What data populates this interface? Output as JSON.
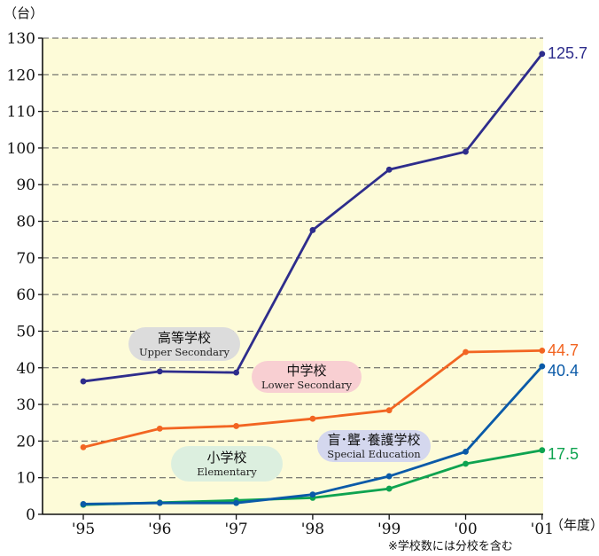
{
  "chart_data": {
    "type": "line",
    "y_unit_label": "（台）",
    "x_unit_label": "（年度）",
    "x": [
      "'95",
      "'96",
      "'97",
      "'98",
      "'99",
      "'00",
      "'01"
    ],
    "ylim": [
      0,
      130
    ],
    "yticks": [
      0,
      10,
      20,
      30,
      40,
      50,
      60,
      70,
      80,
      90,
      100,
      110,
      120,
      130
    ],
    "grid": true,
    "series": [
      {
        "name_jp": "高等学校",
        "name_en": "Upper Secondary",
        "color": "#2e2d8c",
        "values": [
          36.3,
          39.0,
          38.7,
          77.6,
          94.1,
          99.0,
          125.7
        ],
        "end_label": "125.7"
      },
      {
        "name_jp": "中学校",
        "name_en": "Lower Secondary",
        "color": "#f26522",
        "values": [
          18.3,
          23.4,
          24.1,
          26.1,
          28.4,
          44.3,
          44.7
        ],
        "end_label": "44.7"
      },
      {
        "name_jp": "盲･聾･養護学校",
        "name_en": "Special Education",
        "color": "#0a5aa8",
        "values": [
          2.8,
          3.1,
          3.1,
          5.4,
          10.4,
          17.1,
          40.4
        ],
        "end_label": "40.4"
      },
      {
        "name_jp": "小学校",
        "name_en": "Elementary",
        "color": "#0ea350",
        "values": [
          2.6,
          3.2,
          3.8,
          4.5,
          7.0,
          13.8,
          17.5
        ],
        "end_label": "17.5"
      }
    ],
    "note": "※学校数には分校を含む"
  }
}
